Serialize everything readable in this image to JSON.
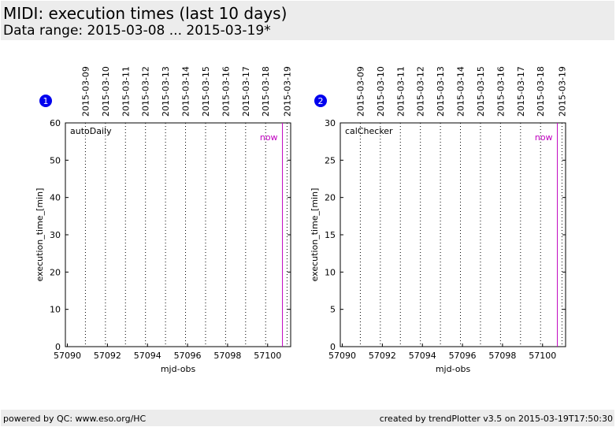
{
  "header": {
    "title": "MIDI: execution times (last 10 days)",
    "subtitle": "Data range: 2015-03-08 ... 2015-03-19*"
  },
  "footer": {
    "left": "powered by QC: www.eso.org/HC",
    "right": "created by trendPlotter v3.5 on 2015-03-19T17:50:30"
  },
  "colors": {
    "now_line": "#c000c0",
    "now_label": "#c000c0",
    "badge": "#0000ee",
    "background": "#ffffff",
    "header_bg": "#ececec"
  },
  "chart_data": [
    {
      "type": "scatter",
      "badge": "1",
      "panel_label": "autoDaily",
      "xlabel": "mjd-obs",
      "ylabel": "execution_time_[min]",
      "xlim": [
        57089.9,
        57101.15
      ],
      "ylim": [
        0,
        60
      ],
      "xticks": [
        57090,
        57092,
        57094,
        57096,
        57098,
        57100
      ],
      "xtick_labels": [
        "57090",
        "57092",
        "57094",
        "57096",
        "57098",
        "57100"
      ],
      "yticks": [
        0,
        10,
        20,
        30,
        40,
        50,
        60
      ],
      "ytick_labels": [
        "0",
        "10",
        "20",
        "30",
        "40",
        "50",
        "60"
      ],
      "date_lines_mjd": [
        57090.9,
        57091.9,
        57092.9,
        57093.9,
        57094.9,
        57095.9,
        57096.9,
        57097.9,
        57098.9,
        57099.9,
        57100.97
      ],
      "date_labels": [
        "2015-03-09",
        "2015-03-10",
        "2015-03-11",
        "2015-03-12",
        "2015-03-13",
        "2015-03-14",
        "2015-03-15",
        "2015-03-16",
        "2015-03-17",
        "2015-03-18",
        "2015-03-19"
      ],
      "now_mjd": 57100.74,
      "now_label": "now",
      "grid": false,
      "series": []
    },
    {
      "type": "scatter",
      "badge": "2",
      "panel_label": "calChecker",
      "xlabel": "mjd-obs",
      "ylabel": "execution_time_[min]",
      "xlim": [
        57089.9,
        57101.15
      ],
      "ylim": [
        0,
        30
      ],
      "xticks": [
        57090,
        57092,
        57094,
        57096,
        57098,
        57100
      ],
      "xtick_labels": [
        "57090",
        "57092",
        "57094",
        "57096",
        "57098",
        "57100"
      ],
      "yticks": [
        0,
        5,
        10,
        15,
        20,
        25,
        30
      ],
      "ytick_labels": [
        "0",
        "5",
        "10",
        "15",
        "20",
        "25",
        "30"
      ],
      "date_lines_mjd": [
        57090.9,
        57091.9,
        57092.9,
        57093.9,
        57094.9,
        57095.9,
        57096.9,
        57097.9,
        57098.9,
        57099.9,
        57100.97
      ],
      "date_labels": [
        "2015-03-09",
        "2015-03-10",
        "2015-03-11",
        "2015-03-12",
        "2015-03-13",
        "2015-03-14",
        "2015-03-15",
        "2015-03-16",
        "2015-03-17",
        "2015-03-18",
        "2015-03-19"
      ],
      "now_mjd": 57100.74,
      "now_label": "now",
      "grid": false,
      "series": []
    }
  ]
}
